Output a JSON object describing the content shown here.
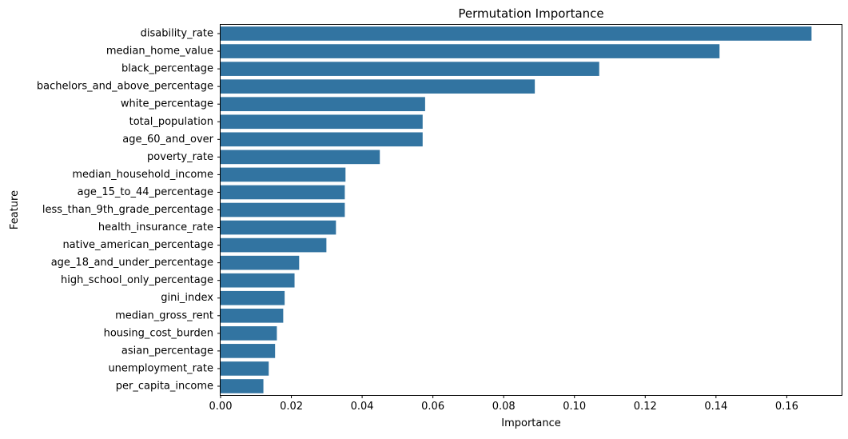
{
  "chart_data": {
    "type": "bar",
    "orientation": "horizontal",
    "title": "Permutation Importance",
    "xlabel": "Importance",
    "ylabel": "Feature",
    "xlim": [
      0,
      0.1755
    ],
    "xticks": [
      "0.00",
      "0.02",
      "0.04",
      "0.06",
      "0.08",
      "0.10",
      "0.12",
      "0.14",
      "0.16"
    ],
    "xtick_values": [
      0,
      0.02,
      0.04,
      0.06,
      0.08,
      0.1,
      0.12,
      0.14,
      0.16
    ],
    "grid": false,
    "bar_color": "#3274a1",
    "categories": [
      "disability_rate",
      "median_home_value",
      "black_percentage",
      "bachelors_and_above_percentage",
      "white_percentage",
      "total_population",
      "age_60_and_over",
      "poverty_rate",
      "median_household_income",
      "age_15_to_44_percentage",
      "less_than_9th_grade_percentage",
      "health_insurance_rate",
      "native_american_percentage",
      "age_18_and_under_percentage",
      "high_school_only_percentage",
      "gini_index",
      "median_gross_rent",
      "housing_cost_burden",
      "asian_percentage",
      "unemployment_rate",
      "per_capita_income"
    ],
    "values": [
      0.167,
      0.141,
      0.107,
      0.0888,
      0.0578,
      0.0571,
      0.0571,
      0.045,
      0.0353,
      0.0351,
      0.0351,
      0.0326,
      0.0299,
      0.0222,
      0.0209,
      0.0181,
      0.0177,
      0.0159,
      0.0154,
      0.0136,
      0.0121
    ]
  }
}
